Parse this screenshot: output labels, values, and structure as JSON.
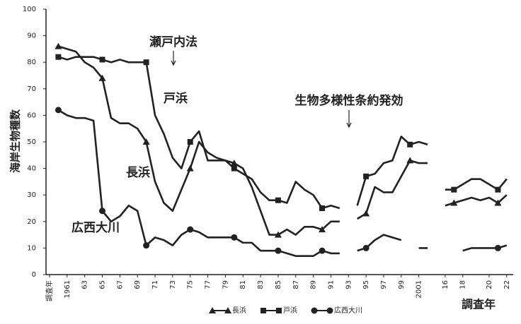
{
  "chart_data": {
    "type": "line",
    "y_label": "海岸生物種数",
    "x_label": "調査年",
    "ylim": [
      0,
      100
    ],
    "yticks": [
      0,
      10,
      20,
      30,
      40,
      50,
      60,
      70,
      80,
      90,
      100
    ],
    "annotations": [
      "瀬戸内法",
      "生物多様性条約発効"
    ],
    "categories": [
      "調査年",
      null,
      "1961",
      null,
      "63",
      null,
      "65",
      null,
      "67",
      null,
      "69",
      null,
      "71",
      null,
      "73",
      null,
      "75",
      null,
      "77",
      null,
      "79",
      null,
      "81",
      null,
      "83",
      null,
      "85",
      null,
      "87",
      null,
      "89",
      null,
      "91",
      null,
      "93",
      null,
      "95",
      null,
      "97",
      null,
      "99",
      null,
      "2001",
      null,
      null,
      "16",
      null,
      "18",
      null,
      null,
      "20",
      null,
      "22"
    ],
    "series": [
      {
        "name": "長浜",
        "color": "#222222",
        "marker": "triangle",
        "values": [
          null,
          86,
          85,
          84,
          80,
          78,
          74,
          59,
          57,
          57,
          55,
          50,
          35,
          27,
          24,
          32,
          40,
          50,
          46,
          44,
          43,
          42,
          40,
          33,
          24,
          15,
          15,
          17,
          15,
          18,
          18,
          17,
          20,
          20,
          null,
          21,
          23,
          33,
          31,
          31,
          37,
          43,
          42,
          42,
          null,
          26,
          27,
          28,
          29,
          28,
          29,
          27,
          30
        ]
      },
      {
        "name": "戸浜",
        "color": "#222222",
        "marker": "square",
        "values": [
          null,
          82,
          81,
          82,
          82,
          82,
          81,
          80,
          81,
          80,
          80,
          80,
          60,
          53,
          44,
          40,
          50,
          54,
          43,
          43,
          43,
          40,
          38,
          36,
          31,
          28,
          28,
          27,
          35,
          32,
          30,
          25,
          26,
          25,
          null,
          26,
          37,
          38,
          42,
          43,
          52,
          49,
          50,
          49,
          null,
          32,
          32,
          34,
          36,
          36,
          34,
          32,
          36
        ]
      },
      {
        "name": "広西大川",
        "color": "#222222",
        "marker": "circle",
        "values": [
          null,
          62,
          60,
          59,
          59,
          58,
          24,
          20,
          22,
          26,
          24,
          11,
          14,
          13,
          11,
          15,
          17,
          16,
          14,
          14,
          14,
          14,
          12,
          12,
          9,
          9,
          9,
          8,
          7,
          7,
          7,
          9,
          8,
          8,
          null,
          9,
          10,
          13,
          15,
          14,
          13,
          null,
          10,
          10,
          null,
          null,
          null,
          9,
          10,
          10,
          10,
          10,
          11
        ]
      }
    ]
  }
}
